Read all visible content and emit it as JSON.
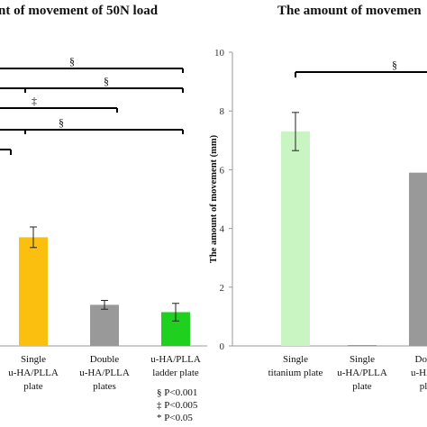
{
  "left_title": "nt of movement of 50N load",
  "right_title": "The amount of movemen",
  "legend": [
    "§ P<0.001",
    "‡ P<0.005",
    "* P<0.05"
  ],
  "chart_data": [
    {
      "type": "bar",
      "title": "nt of movement of 50N load",
      "categories": [
        [
          "Single",
          "u-HA/PLLA",
          "plate"
        ],
        [
          "Double",
          "u-HA/PLLA",
          "plates"
        ],
        [
          "u-HA/PLLA",
          "ladder plate"
        ]
      ],
      "values": [
        3.7,
        1.4,
        1.15
      ],
      "errors": [
        0.35,
        0.15,
        0.3
      ],
      "colors": [
        "#fbbf10",
        "#999999",
        "#1fd01f"
      ],
      "ylim": [
        0,
        10
      ],
      "significance": [
        "§",
        "§",
        "‡",
        "§"
      ]
    },
    {
      "type": "bar",
      "title": "The amount of movemen",
      "ylabel": "The amount of movement (mm)",
      "yticks": [
        "0",
        "2",
        "4",
        "6",
        "8",
        "10"
      ],
      "ylim": [
        0,
        10
      ],
      "categories": [
        [
          "Single",
          "titanium plate"
        ],
        [
          "Single",
          "u-HA/PLLA",
          "plate"
        ],
        [
          "Dou",
          "u-HA/",
          "pl"
        ]
      ],
      "values": [
        7.3,
        0.02,
        5.9
      ],
      "errors": [
        0.65,
        0,
        0
      ],
      "colors": [
        "#c9f5c2",
        "#999999",
        "#999999"
      ],
      "significance": [
        "§"
      ]
    }
  ]
}
